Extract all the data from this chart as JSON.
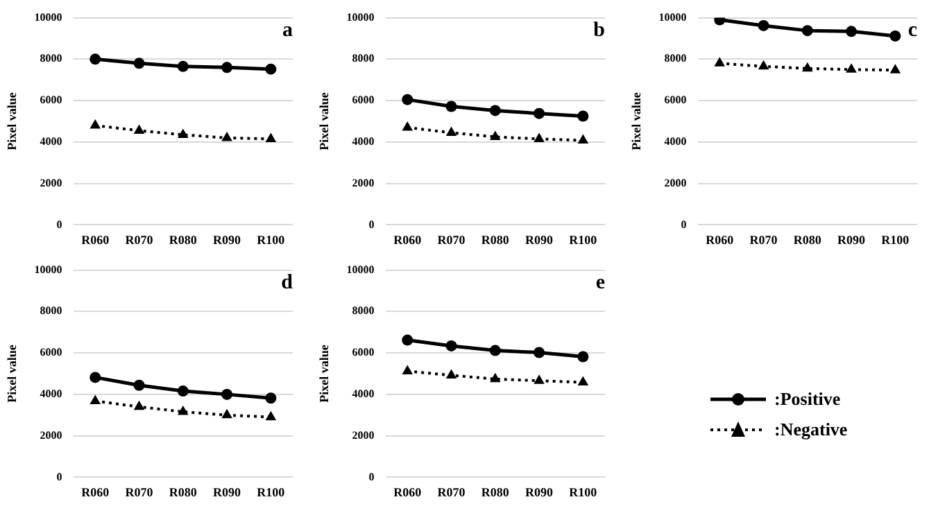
{
  "chart_data": [
    {
      "type": "line",
      "annotations": [
        "a"
      ],
      "ylabel": "Pixel value",
      "categories": [
        "R060",
        "R070",
        "R080",
        "R090",
        "R100"
      ],
      "ylim": [
        0,
        10000
      ],
      "yticks": [
        0,
        2000,
        4000,
        6000,
        8000,
        10000
      ],
      "grid": "y",
      "legend": false,
      "series": [
        {
          "color": "#000000",
          "marker": "circle",
          "line_style": "solid",
          "values": [
            8000,
            7800,
            7650,
            7600,
            7520
          ]
        },
        {
          "color": "#000000",
          "marker": "triangle",
          "line_style": "dotted",
          "values": [
            4800,
            4550,
            4350,
            4200,
            4150
          ]
        }
      ]
    },
    {
      "type": "line",
      "annotations": [
        "b"
      ],
      "ylabel": "Pixel value",
      "categories": [
        "R060",
        "R070",
        "R080",
        "R090",
        "R100"
      ],
      "ylim": [
        0,
        10000
      ],
      "yticks": [
        0,
        2000,
        4000,
        6000,
        8000,
        10000
      ],
      "grid": "y",
      "legend": false,
      "series": [
        {
          "color": "#000000",
          "marker": "circle",
          "line_style": "solid",
          "values": [
            6050,
            5720,
            5520,
            5380,
            5250
          ]
        },
        {
          "color": "#000000",
          "marker": "triangle",
          "line_style": "dotted",
          "values": [
            4700,
            4450,
            4250,
            4150,
            4080
          ]
        }
      ]
    },
    {
      "type": "line",
      "annotations": [
        "c"
      ],
      "ylabel": "Pixel value",
      "categories": [
        "R060",
        "R070",
        "R080",
        "R090",
        "R100"
      ],
      "ylim": [
        0,
        10000
      ],
      "yticks": [
        0,
        2000,
        4000,
        6000,
        8000,
        10000
      ],
      "grid": "y",
      "legend": false,
      "series": [
        {
          "color": "#000000",
          "marker": "circle",
          "line_style": "solid",
          "values": [
            9900,
            9620,
            9380,
            9340,
            9120
          ]
        },
        {
          "color": "#000000",
          "marker": "triangle",
          "line_style": "dotted",
          "values": [
            7800,
            7650,
            7550,
            7500,
            7470
          ]
        }
      ]
    },
    {
      "type": "line",
      "annotations": [
        "d"
      ],
      "ylabel": "Pixel value",
      "categories": [
        "R060",
        "R070",
        "R080",
        "R090",
        "R100"
      ],
      "ylim": [
        0,
        10000
      ],
      "yticks": [
        0,
        2000,
        4000,
        6000,
        8000,
        10000
      ],
      "grid": "y",
      "legend": false,
      "series": [
        {
          "color": "#000000",
          "marker": "circle",
          "line_style": "solid",
          "values": [
            4820,
            4440,
            4160,
            4000,
            3820
          ]
        },
        {
          "color": "#000000",
          "marker": "triangle",
          "line_style": "dotted",
          "values": [
            3680,
            3400,
            3160,
            3000,
            2900
          ]
        }
      ]
    },
    {
      "type": "line",
      "annotations": [
        "e"
      ],
      "ylabel": "Pixel value",
      "categories": [
        "R060",
        "R070",
        "R080",
        "R090",
        "R100"
      ],
      "ylim": [
        0,
        10000
      ],
      "yticks": [
        0,
        2000,
        4000,
        6000,
        8000,
        10000
      ],
      "grid": "y",
      "legend": "right",
      "series": [
        {
          "name": ":Positive",
          "color": "#000000",
          "marker": "circle",
          "line_style": "solid",
          "values": [
            6620,
            6340,
            6120,
            6020,
            5820
          ]
        },
        {
          "name": ":Negative",
          "color": "#000000",
          "marker": "triangle",
          "line_style": "dotted",
          "values": [
            5120,
            4920,
            4740,
            4660,
            4580
          ]
        }
      ]
    }
  ]
}
